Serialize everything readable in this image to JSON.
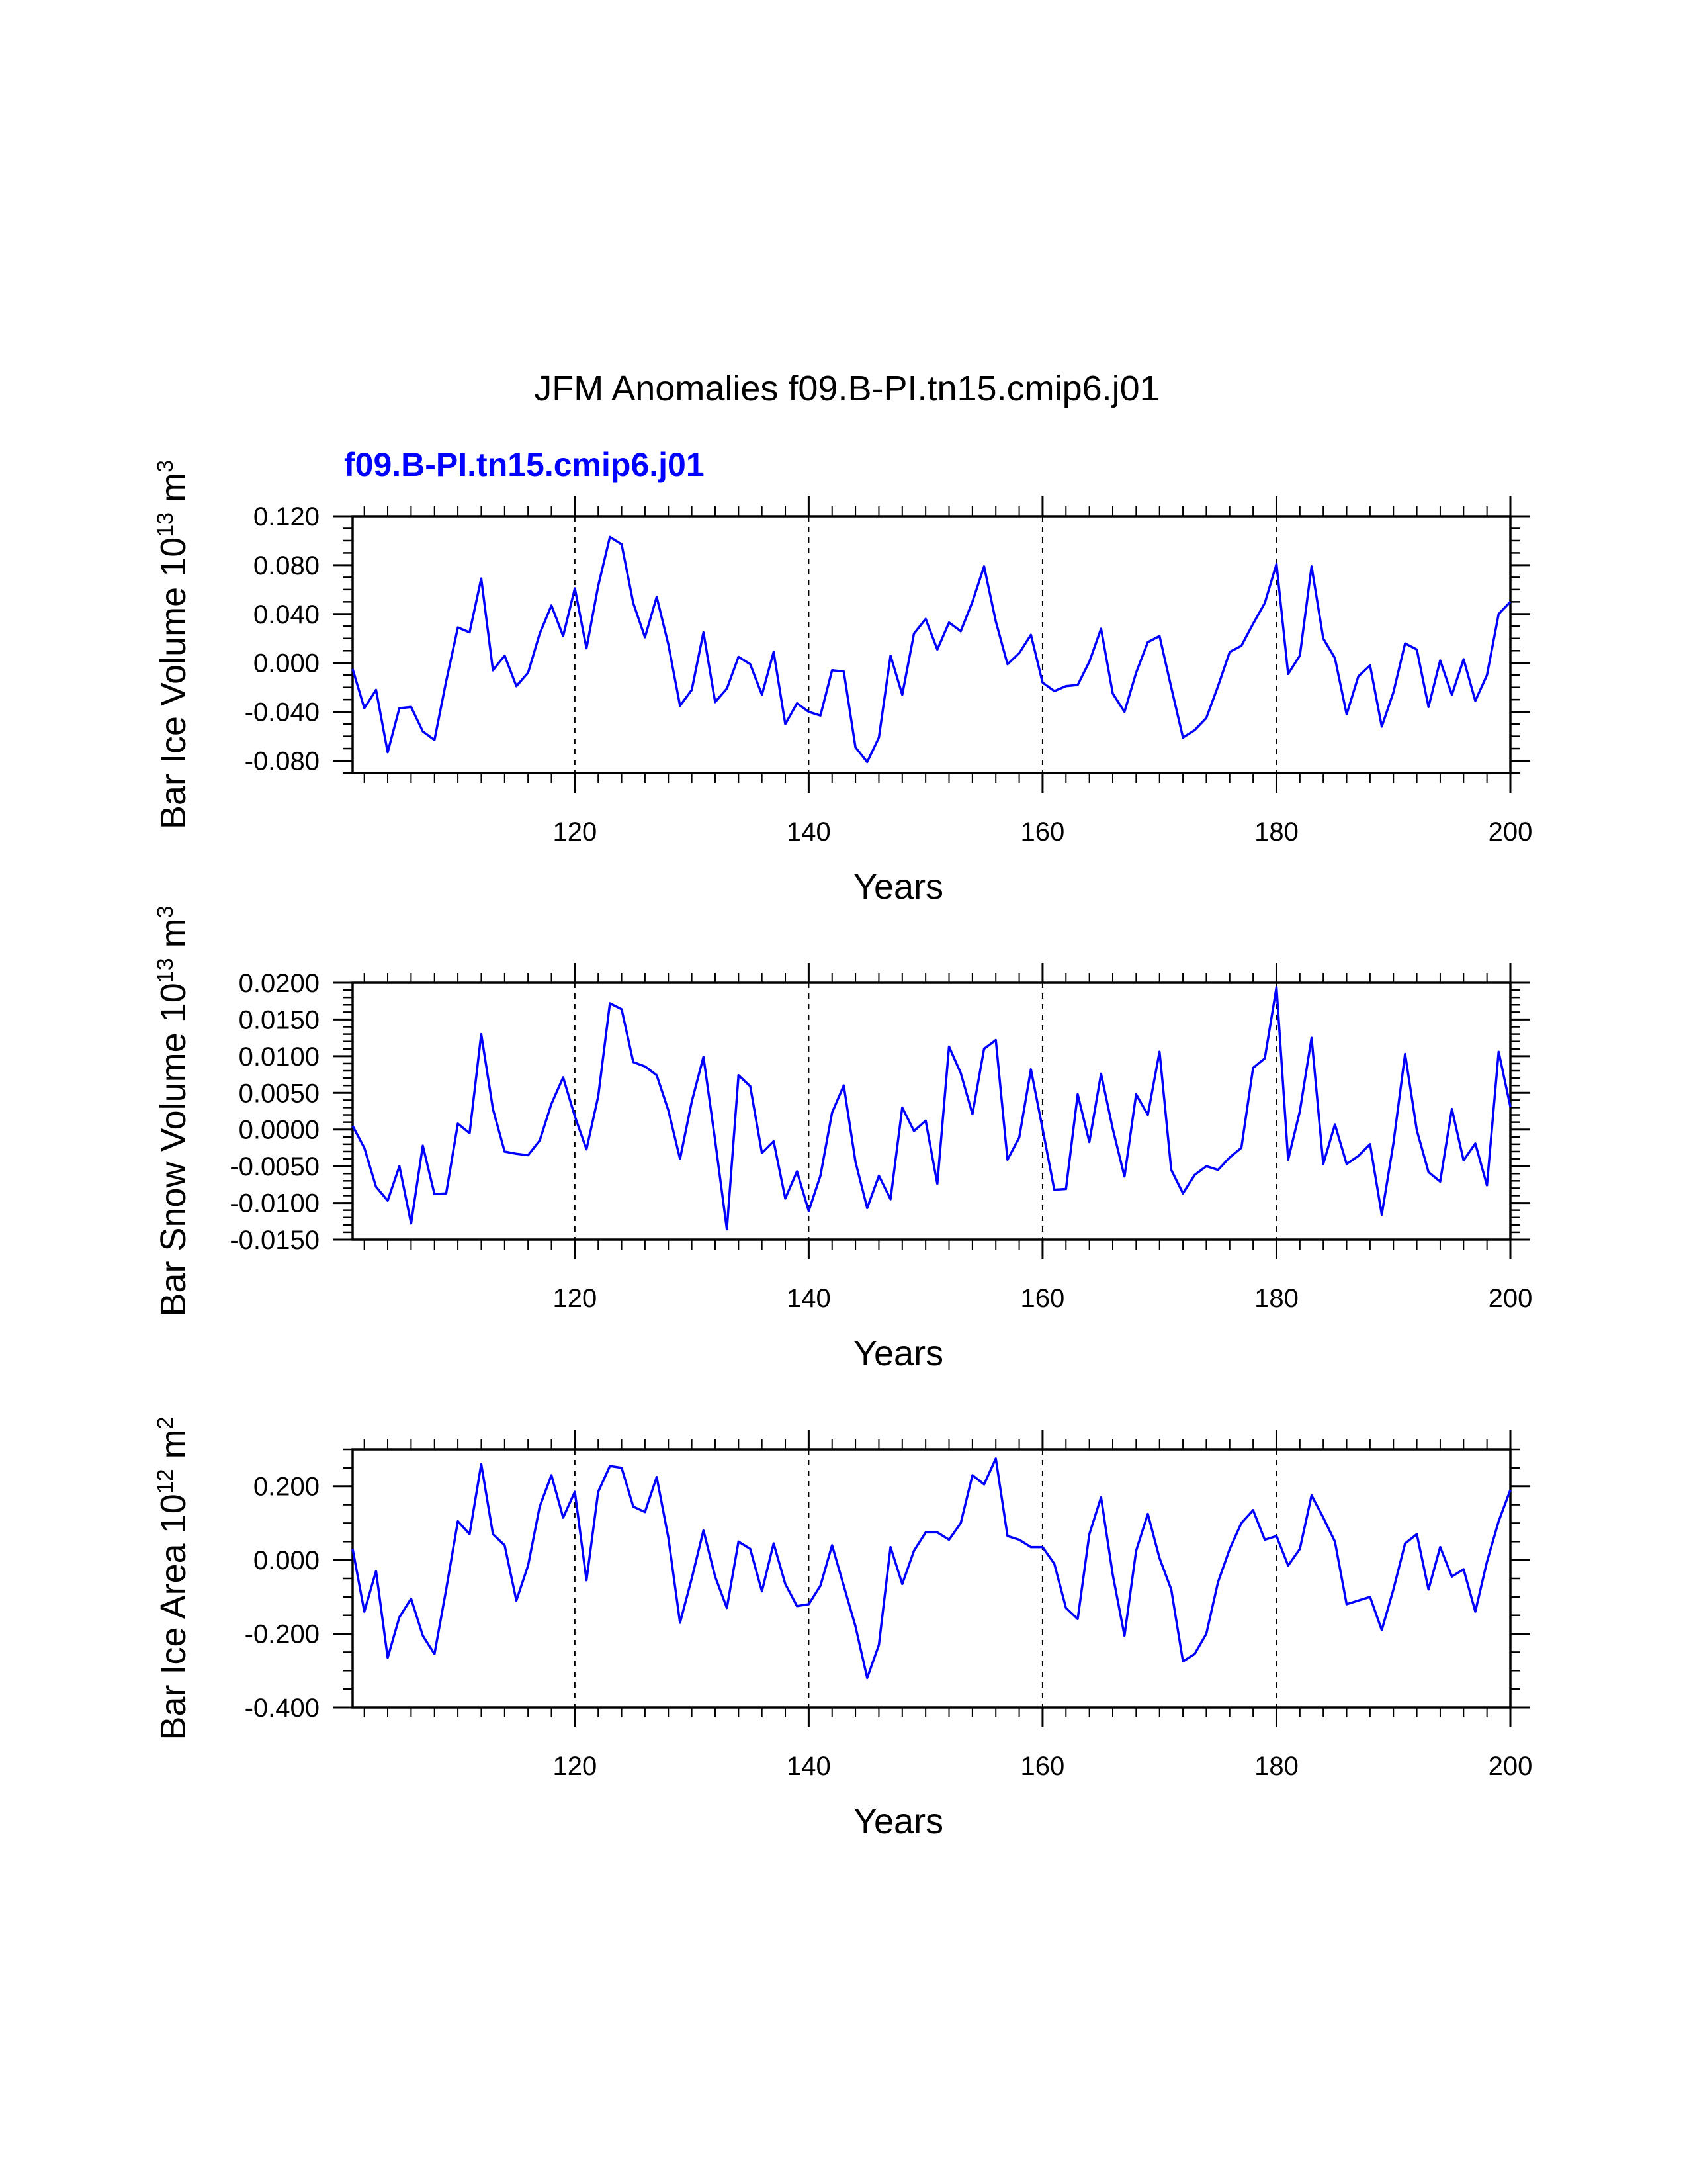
{
  "title": "JFM Anomalies f09.B-PI.tn15.cmip6.j01",
  "subtitle": "f09.B-PI.tn15.cmip6.j01",
  "colors": {
    "line": "#0000ff",
    "subtitle": "#0000ff",
    "axis": "#000000"
  },
  "chart_data": [
    {
      "type": "line",
      "ylabel": {
        "prefix": "Bar Ice Volume 10",
        "exp": "13",
        "unit": " m",
        "unit_exp": "3"
      },
      "xlabel": "Years",
      "xlim": [
        101,
        200
      ],
      "ylim": [
        -0.09,
        0.12
      ],
      "xticks": [
        120,
        140,
        160,
        180,
        200
      ],
      "xtick_labels": [
        "120",
        "140",
        "160",
        "180",
        "200"
      ],
      "yticks": [
        0.12,
        0.08,
        0.04,
        0.0,
        -0.04,
        -0.08
      ],
      "ytick_labels": [
        "0.120",
        "0.080",
        "0.040",
        "0.000",
        "-0.040",
        "-0.080"
      ],
      "yminor_step": 0.01,
      "vlines": [
        120,
        140,
        160,
        180
      ],
      "series": [
        {
          "name": "f09.B-PI.tn15.cmip6.j01",
          "x": [
            101,
            102,
            103,
            104,
            105,
            106,
            107,
            108,
            109,
            110,
            111,
            112,
            113,
            114,
            115,
            116,
            117,
            118,
            119,
            120,
            121,
            122,
            123,
            124,
            125,
            126,
            127,
            128,
            129,
            130,
            131,
            132,
            133,
            134,
            135,
            136,
            137,
            138,
            139,
            140,
            141,
            142,
            143,
            144,
            145,
            146,
            147,
            148,
            149,
            150,
            151,
            152,
            153,
            154,
            155,
            156,
            157,
            158,
            159,
            160,
            161,
            162,
            163,
            164,
            165,
            166,
            167,
            168,
            169,
            170,
            171,
            172,
            173,
            174,
            175,
            176,
            177,
            178,
            179,
            180,
            181,
            182,
            183,
            184,
            185,
            186,
            187,
            188,
            189,
            190,
            191,
            192,
            193,
            194,
            195,
            196,
            197,
            198,
            199,
            200
          ],
          "values": [
            -0.005,
            -0.037,
            -0.022,
            -0.073,
            -0.037,
            -0.036,
            -0.056,
            -0.063,
            -0.015,
            0.029,
            0.025,
            0.069,
            -0.006,
            0.006,
            -0.019,
            -0.008,
            0.024,
            0.047,
            0.022,
            0.061,
            0.012,
            0.063,
            0.103,
            0.097,
            0.049,
            0.021,
            0.054,
            0.015,
            -0.035,
            -0.022,
            0.025,
            -0.032,
            -0.021,
            0.005,
            -0.001,
            -0.026,
            0.009,
            -0.05,
            -0.033,
            -0.04,
            -0.043,
            -0.006,
            -0.007,
            -0.069,
            -0.081,
            -0.061,
            0.006,
            -0.026,
            0.024,
            0.036,
            0.011,
            0.033,
            0.026,
            0.05,
            0.079,
            0.034,
            -0.001,
            0.008,
            0.023,
            -0.016,
            -0.023,
            -0.019,
            -0.018,
            0.001,
            0.028,
            -0.025,
            -0.04,
            -0.008,
            0.017,
            0.022,
            -0.02,
            -0.061,
            -0.055,
            -0.045,
            -0.019,
            0.009,
            0.014,
            0.032,
            0.049,
            0.081,
            -0.009,
            0.006,
            0.079,
            0.02,
            0.004,
            -0.042,
            -0.011,
            -0.002,
            -0.052,
            -0.024,
            0.016,
            0.011,
            -0.036,
            0.002,
            -0.026,
            0.003,
            -0.031,
            -0.01,
            0.04,
            0.05
          ]
        }
      ]
    },
    {
      "type": "line",
      "ylabel": {
        "prefix": "Bar Snow Volume 10",
        "exp": "13",
        "unit": " m",
        "unit_exp": "3"
      },
      "xlabel": "Years",
      "xlim": [
        101,
        200
      ],
      "ylim": [
        -0.015,
        0.02
      ],
      "xticks": [
        120,
        140,
        160,
        180,
        200
      ],
      "xtick_labels": [
        "120",
        "140",
        "160",
        "180",
        "200"
      ],
      "yticks": [
        0.02,
        0.015,
        0.01,
        0.005,
        0.0,
        -0.005,
        -0.01,
        -0.015
      ],
      "ytick_labels": [
        "0.0200",
        "0.0150",
        "0.0100",
        "0.0050",
        "0.0000",
        "-0.0050",
        "-0.0100",
        "-0.0150"
      ],
      "yminor_step": 0.001,
      "vlines": [
        120,
        140,
        160,
        180
      ],
      "series": [
        {
          "name": "f09.B-PI.tn15.cmip6.j01",
          "x": [
            101,
            102,
            103,
            104,
            105,
            106,
            107,
            108,
            109,
            110,
            111,
            112,
            113,
            114,
            115,
            116,
            117,
            118,
            119,
            120,
            121,
            122,
            123,
            124,
            125,
            126,
            127,
            128,
            129,
            130,
            131,
            132,
            133,
            134,
            135,
            136,
            137,
            138,
            139,
            140,
            141,
            142,
            143,
            144,
            145,
            146,
            147,
            148,
            149,
            150,
            151,
            152,
            153,
            154,
            155,
            156,
            157,
            158,
            159,
            160,
            161,
            162,
            163,
            164,
            165,
            166,
            167,
            168,
            169,
            170,
            171,
            172,
            173,
            174,
            175,
            176,
            177,
            178,
            179,
            180,
            181,
            182,
            183,
            184,
            185,
            186,
            187,
            188,
            189,
            190,
            191,
            192,
            193,
            194,
            195,
            196,
            197,
            198,
            199,
            200
          ],
          "values": [
            0.0005,
            -0.0025,
            -0.0078,
            -0.0097,
            -0.005,
            -0.0128,
            -0.0022,
            -0.0088,
            -0.0087,
            0.0008,
            -0.0005,
            0.013,
            0.0028,
            -0.003,
            -0.0033,
            -0.0035,
            -0.0015,
            0.0035,
            0.0071,
            0.0018,
            -0.0027,
            0.0045,
            0.0172,
            0.0164,
            0.0092,
            0.0086,
            0.0074,
            0.0026,
            -0.004,
            0.0038,
            0.0099,
            -0.0015,
            -0.0136,
            0.0074,
            0.0059,
            -0.0032,
            -0.0016,
            -0.0094,
            -0.0057,
            -0.0111,
            -0.0063,
            0.0023,
            0.006,
            -0.0044,
            -0.0107,
            -0.0063,
            -0.0095,
            0.003,
            -0.0002,
            0.0012,
            -0.0074,
            0.0113,
            0.0077,
            0.0021,
            0.011,
            0.0122,
            -0.0041,
            -0.0011,
            0.0082,
            0.0001,
            -0.0082,
            -0.0081,
            0.0048,
            -0.0017,
            0.0076,
            0.0001,
            -0.0064,
            0.0048,
            0.002,
            0.0106,
            -0.0055,
            -0.0087,
            -0.0062,
            -0.005,
            -0.0055,
            -0.0038,
            -0.0025,
            0.0084,
            0.0097,
            0.0194,
            -0.0041,
            0.0025,
            0.0125,
            -0.0047,
            0.0007,
            -0.0047,
            -0.0036,
            -0.002,
            -0.0116,
            -0.0019,
            0.0103,
            -0.0001,
            -0.0058,
            -0.0071,
            0.0028,
            -0.0042,
            -0.0019,
            -0.0076,
            0.0106,
            0.0031
          ]
        }
      ]
    },
    {
      "type": "line",
      "ylabel": {
        "prefix": "Bar Ice Area 10",
        "exp": "12",
        "unit": " m",
        "unit_exp": "2"
      },
      "xlabel": "Years",
      "xlim": [
        101,
        200
      ],
      "ylim": [
        -0.4,
        0.3
      ],
      "xticks": [
        120,
        140,
        160,
        180,
        200
      ],
      "xtick_labels": [
        "120",
        "140",
        "160",
        "180",
        "200"
      ],
      "yticks": [
        0.2,
        0.0,
        -0.2,
        -0.4
      ],
      "ytick_labels": [
        "0.200",
        "0.000",
        "-0.200",
        "-0.400"
      ],
      "yminor_step": 0.05,
      "vlines": [
        120,
        140,
        160,
        180
      ],
      "series": [
        {
          "name": "f09.B-PI.tn15.cmip6.j01",
          "x": [
            101,
            102,
            103,
            104,
            105,
            106,
            107,
            108,
            109,
            110,
            111,
            112,
            113,
            114,
            115,
            116,
            117,
            118,
            119,
            120,
            121,
            122,
            123,
            124,
            125,
            126,
            127,
            128,
            129,
            130,
            131,
            132,
            133,
            134,
            135,
            136,
            137,
            138,
            139,
            140,
            141,
            142,
            143,
            144,
            145,
            146,
            147,
            148,
            149,
            150,
            151,
            152,
            153,
            154,
            155,
            156,
            157,
            158,
            159,
            160,
            161,
            162,
            163,
            164,
            165,
            166,
            167,
            168,
            169,
            170,
            171,
            172,
            173,
            174,
            175,
            176,
            177,
            178,
            179,
            180,
            181,
            182,
            183,
            184,
            185,
            186,
            187,
            188,
            189,
            190,
            191,
            192,
            193,
            194,
            195,
            196,
            197,
            198,
            199,
            200
          ],
          "values": [
            0.03,
            -0.14,
            -0.03,
            -0.265,
            -0.155,
            -0.105,
            -0.205,
            -0.255,
            -0.08,
            0.105,
            0.07,
            0.26,
            0.07,
            0.04,
            -0.11,
            -0.015,
            0.145,
            0.23,
            0.115,
            0.185,
            -0.055,
            0.185,
            0.255,
            0.25,
            0.145,
            0.13,
            0.225,
            0.06,
            -0.17,
            -0.05,
            0.08,
            -0.045,
            -0.13,
            0.05,
            0.03,
            -0.085,
            0.045,
            -0.065,
            -0.125,
            -0.12,
            -0.07,
            0.04,
            -0.07,
            -0.18,
            -0.32,
            -0.23,
            0.035,
            -0.065,
            0.025,
            0.075,
            0.075,
            0.055,
            0.1,
            0.23,
            0.205,
            0.275,
            0.065,
            0.055,
            0.035,
            0.035,
            -0.01,
            -0.13,
            -0.16,
            0.07,
            0.17,
            -0.04,
            -0.205,
            0.025,
            0.125,
            0.005,
            -0.08,
            -0.275,
            -0.255,
            -0.2,
            -0.06,
            0.03,
            0.1,
            0.135,
            0.055,
            0.065,
            -0.015,
            0.03,
            0.175,
            0.115,
            0.05,
            -0.12,
            -0.11,
            -0.1,
            -0.19,
            -0.08,
            0.045,
            0.07,
            -0.08,
            0.035,
            -0.045,
            -0.025,
            -0.14,
            -0.005,
            0.105,
            0.19
          ]
        }
      ]
    }
  ]
}
